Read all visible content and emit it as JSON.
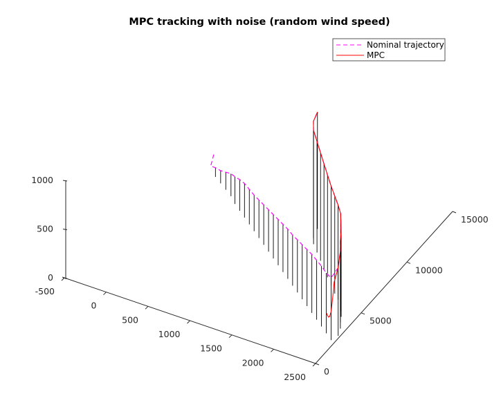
{
  "chart_data": {
    "type": "line",
    "projection": "3d",
    "title": "MPC tracking with noise (random wind speed)",
    "xlabel": "",
    "ylabel": "",
    "zlabel": "",
    "xlim": [
      -500,
      2500
    ],
    "ylim": [
      0,
      15000
    ],
    "zlim": [
      0,
      1000
    ],
    "x_ticks": [
      "-500",
      "0",
      "500",
      "1000",
      "1500",
      "2000",
      "2500"
    ],
    "y_ticks": [
      "0",
      "5000",
      "10000",
      "15000"
    ],
    "z_ticks": [
      "0",
      "500",
      "1000"
    ],
    "grid": false,
    "legend_position": "top-right",
    "stems": true,
    "series": [
      {
        "name": "Nominal trajectory",
        "style": "dashed",
        "color": "#ff00ff",
        "x": [
          -150,
          -50,
          50,
          150,
          250,
          350,
          450,
          550,
          650,
          750,
          850,
          950,
          1050,
          1150,
          1250,
          1350,
          1450,
          1550,
          1650,
          1750,
          1850,
          1950,
          2050,
          2150,
          2250,
          2350,
          2450,
          2480,
          2440,
          2390,
          2350,
          2300,
          2250,
          2180,
          2100,
          2000,
          1900,
          1800,
          1700,
          1600,
          1500,
          1450,
          1410
        ],
        "y": [
          13150,
          11900,
          11500,
          11150,
          10800,
          10450,
          9960,
          9570,
          9180,
          8790,
          8400,
          8010,
          7620,
          7230,
          6840,
          6450,
          6060,
          5670,
          5280,
          4890,
          4500,
          4110,
          3720,
          3330,
          2940,
          2550,
          2160,
          2660,
          3270,
          3730,
          4180,
          4610,
          5040,
          5400,
          5770,
          6290,
          6810,
          7340,
          7880,
          8410,
          8950,
          9400,
          10200
        ],
        "z": [
          0,
          40,
          95,
          130,
          180,
          230,
          280,
          320,
          350,
          360,
          370,
          390,
          410,
          430,
          450,
          470,
          490,
          510,
          520,
          540,
          560,
          580,
          600,
          610,
          620,
          620,
          640,
          700,
          800,
          840,
          880,
          900,
          940,
          970,
          1000,
          1020,
          1050,
          1080,
          1110,
          1140,
          1170,
          1200,
          1200
        ]
      },
      {
        "name": "MPC",
        "style": "solid",
        "color": "#ff0000",
        "x": [
          1410,
          1450,
          1500,
          1600,
          1700,
          1800,
          1900,
          2000,
          2100,
          2180,
          2250,
          2300,
          2350,
          2390,
          2440,
          2480,
          2450,
          2420,
          2385,
          2340,
          2300,
          2260,
          2220
        ],
        "y": [
          10200,
          9400,
          8950,
          8410,
          7880,
          7340,
          6810,
          6290,
          5770,
          5400,
          5040,
          4610,
          4180,
          3730,
          3270,
          2660,
          2500,
          2600,
          2750,
          3000,
          3250,
          3500,
          3780
        ],
        "z": [
          1200,
          1200,
          1170,
          1140,
          1110,
          1080,
          1050,
          1020,
          1000,
          970,
          940,
          900,
          880,
          840,
          800,
          700,
          560,
          370,
          210,
          120,
          80,
          60,
          40
        ]
      }
    ]
  }
}
